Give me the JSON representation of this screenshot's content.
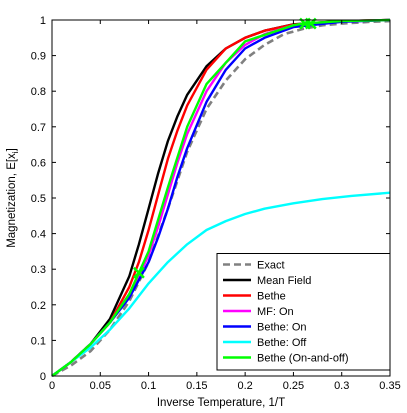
{
  "chart_data": {
    "type": "line",
    "title": "",
    "xlabel": "Inverse Temperature, 1/T",
    "ylabel": "Magnetization, E[x",
    "ylabel_subscript": "i",
    "ylabel_suffix": "]",
    "xlim": [
      0,
      0.35
    ],
    "ylim": [
      0,
      1
    ],
    "xticks": [
      0,
      0.05,
      0.1,
      0.15,
      0.2,
      0.25,
      0.3,
      0.35
    ],
    "xtick_labels": [
      "0",
      "0.05",
      "0.1",
      "0.15",
      "0.2",
      "0.25",
      "0.3",
      "0.35"
    ],
    "yticks": [
      0,
      0.1,
      0.2,
      0.3,
      0.4,
      0.5,
      0.6,
      0.7,
      0.8,
      0.9,
      1
    ],
    "ytick_labels": [
      "0",
      "0.1",
      "0.2",
      "0.3",
      "0.4",
      "0.5",
      "0.6",
      "0.7",
      "0.8",
      "0.9",
      "1"
    ],
    "grid": false,
    "legend_position": "bottom-right",
    "series": [
      {
        "name": "Exact",
        "color": "#808080",
        "dash": true,
        "x": [
          0,
          0.02,
          0.04,
          0.06,
          0.08,
          0.1,
          0.12,
          0.14,
          0.16,
          0.18,
          0.2,
          0.22,
          0.24,
          0.26,
          0.28,
          0.3,
          0.33,
          0.35
        ],
        "y": [
          0,
          0.03,
          0.07,
          0.13,
          0.21,
          0.32,
          0.47,
          0.63,
          0.75,
          0.83,
          0.89,
          0.93,
          0.96,
          0.975,
          0.985,
          0.99,
          0.995,
          0.997
        ]
      },
      {
        "name": "Mean Field",
        "color": "#000000",
        "dash": false,
        "x": [
          0,
          0.02,
          0.04,
          0.06,
          0.08,
          0.09,
          0.1,
          0.11,
          0.12,
          0.13,
          0.14,
          0.16,
          0.18,
          0.2,
          0.22,
          0.25,
          0.3,
          0.35
        ],
        "y": [
          0,
          0.04,
          0.09,
          0.16,
          0.28,
          0.37,
          0.47,
          0.57,
          0.66,
          0.73,
          0.79,
          0.87,
          0.92,
          0.95,
          0.97,
          0.988,
          0.997,
          1.0
        ]
      },
      {
        "name": "Bethe",
        "color": "#ff0000",
        "dash": false,
        "x": [
          0,
          0.02,
          0.04,
          0.06,
          0.08,
          0.09,
          0.1,
          0.11,
          0.12,
          0.13,
          0.14,
          0.16,
          0.18,
          0.2,
          0.22,
          0.25,
          0.3,
          0.35
        ],
        "y": [
          0,
          0.04,
          0.09,
          0.15,
          0.25,
          0.32,
          0.41,
          0.51,
          0.61,
          0.69,
          0.76,
          0.86,
          0.92,
          0.95,
          0.97,
          0.987,
          0.997,
          1.0
        ]
      },
      {
        "name": "MF: On",
        "color": "#ff00ff",
        "dash": false,
        "x": [
          0,
          0.02,
          0.04,
          0.06,
          0.08,
          0.09,
          0.1,
          0.11,
          0.12,
          0.13,
          0.14,
          0.16,
          0.18,
          0.2,
          0.22,
          0.25,
          0.3,
          0.35
        ],
        "y": [
          0,
          0.04,
          0.09,
          0.15,
          0.23,
          0.28,
          0.34,
          0.42,
          0.51,
          0.6,
          0.68,
          0.8,
          0.88,
          0.93,
          0.96,
          0.985,
          0.996,
          1.0
        ]
      },
      {
        "name": "Bethe: On",
        "color": "#0000ff",
        "dash": false,
        "x": [
          0,
          0.02,
          0.04,
          0.06,
          0.08,
          0.09,
          0.1,
          0.11,
          0.12,
          0.13,
          0.14,
          0.16,
          0.18,
          0.2,
          0.22,
          0.25,
          0.3,
          0.35
        ],
        "y": [
          0,
          0.04,
          0.09,
          0.15,
          0.22,
          0.27,
          0.32,
          0.39,
          0.47,
          0.56,
          0.64,
          0.77,
          0.86,
          0.92,
          0.95,
          0.98,
          0.995,
          1.0
        ]
      },
      {
        "name": "Bethe: Off",
        "color": "#00ffff",
        "dash": false,
        "x": [
          0,
          0.02,
          0.04,
          0.06,
          0.08,
          0.1,
          0.12,
          0.14,
          0.16,
          0.18,
          0.2,
          0.22,
          0.25,
          0.28,
          0.31,
          0.35
        ],
        "y": [
          0,
          0.04,
          0.08,
          0.13,
          0.19,
          0.26,
          0.32,
          0.37,
          0.41,
          0.435,
          0.455,
          0.47,
          0.485,
          0.497,
          0.506,
          0.515
        ]
      },
      {
        "name": "Bethe (On-and-off)",
        "color": "#00ff00",
        "dash": false,
        "x": [
          0,
          0.02,
          0.04,
          0.06,
          0.08,
          0.09,
          0.1,
          0.12,
          0.14,
          0.16,
          0.2,
          0.25,
          0.26,
          0.3,
          0.35
        ],
        "y": [
          0,
          0.04,
          0.09,
          0.15,
          0.23,
          0.29,
          0.35,
          0.53,
          0.7,
          0.82,
          0.94,
          0.985,
          0.99,
          0.997,
          1.0
        ],
        "markers": [
          {
            "x": 0.09,
            "y": 0.29
          },
          {
            "x": 0.262,
            "y": 0.99
          },
          {
            "x": 0.268,
            "y": 0.99
          }
        ]
      }
    ]
  }
}
